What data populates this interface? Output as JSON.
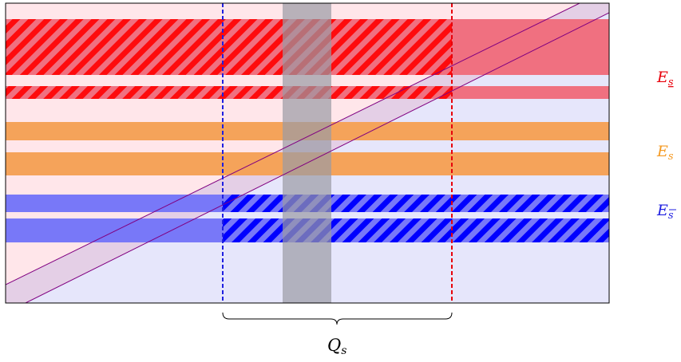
{
  "labels": {
    "e_lower": {
      "main": "E",
      "sub": "s",
      "color": "#e8000b"
    },
    "e_mid": {
      "main": "E",
      "sub": "s",
      "color": "#f59a23"
    },
    "e_upper": {
      "main": "E",
      "sub": "s",
      "color": "#1f1fe0"
    },
    "brace": {
      "main": "Q",
      "sub": "s",
      "color": "#000000"
    }
  },
  "colors": {
    "region_pink": "#ffe6ea",
    "region_lavender": "#e6e6fb",
    "band_red": "#f07080",
    "band_red_hatch": "#ff0000",
    "band_orange": "#f5a35a",
    "band_blue": "#7878f8",
    "band_blue_hatch": "#0000ff",
    "gray_column": "#a0a0a8",
    "diagonal": "#800080",
    "dashed_blue": "#1f1fe0",
    "dashed_red": "#e8000b"
  }
}
